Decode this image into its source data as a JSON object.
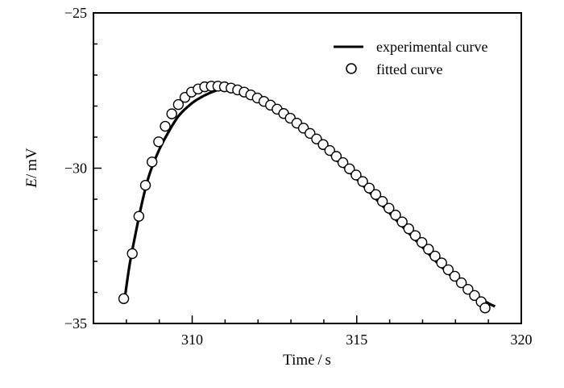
{
  "chart_data": {
    "type": "line",
    "xlabel_italic": "",
    "xlabel": "Time / s",
    "ylabel_italic": "E",
    "ylabel_rest": "/ mV",
    "xlim": [
      307,
      320
    ],
    "ylim": [
      -35,
      -25
    ],
    "xticks": [
      310,
      315,
      320
    ],
    "xtick_labels": [
      "310",
      "315",
      "320"
    ],
    "x_minor_step": 1,
    "yticks": [
      -25,
      -30,
      -35
    ],
    "ytick_labels": [
      "−25",
      "−30",
      "−35"
    ],
    "y_minor_step": 1,
    "grid": false,
    "legend_position": "top-right",
    "series": [
      {
        "name": "experimental curve",
        "style": "line",
        "color": "#000000",
        "x": [
          307.95,
          308.1,
          308.3,
          308.5,
          308.7,
          309.0,
          309.3,
          309.6,
          310.0,
          310.3,
          310.6,
          310.9,
          311.1,
          311.4,
          311.8,
          312.2,
          312.6,
          313.0,
          313.5,
          314.0,
          314.5,
          315.0,
          315.5,
          316.0,
          316.5,
          317.0,
          317.5,
          318.0,
          318.5,
          319.0,
          319.2
        ],
        "y": [
          -34.2,
          -33.1,
          -32.0,
          -31.0,
          -30.2,
          -29.4,
          -28.8,
          -28.3,
          -27.9,
          -27.7,
          -27.55,
          -27.45,
          -27.45,
          -27.5,
          -27.65,
          -27.85,
          -28.1,
          -28.4,
          -28.85,
          -29.35,
          -29.85,
          -30.35,
          -30.9,
          -31.45,
          -32.0,
          -32.55,
          -33.1,
          -33.6,
          -34.05,
          -34.35,
          -34.45
        ]
      },
      {
        "name": "fitted curve",
        "style": "markers",
        "marker": "open-circle",
        "color": "#000000",
        "x": [
          307.92,
          308.18,
          308.38,
          308.58,
          308.78,
          308.98,
          309.18,
          309.38,
          309.58,
          309.78,
          309.98,
          310.18,
          310.38,
          310.58,
          310.78,
          310.98,
          311.18,
          311.38,
          311.58,
          311.78,
          311.98,
          312.18,
          312.38,
          312.58,
          312.78,
          312.98,
          313.18,
          313.38,
          313.58,
          313.78,
          313.98,
          314.18,
          314.38,
          314.58,
          314.78,
          314.98,
          315.18,
          315.38,
          315.58,
          315.78,
          315.98,
          316.18,
          316.38,
          316.58,
          316.78,
          316.98,
          317.18,
          317.38,
          317.58,
          317.78,
          317.98,
          318.18,
          318.38,
          318.58,
          318.78,
          318.9
        ],
        "y": [
          -34.2,
          -32.75,
          -31.55,
          -30.55,
          -29.8,
          -29.15,
          -28.65,
          -28.25,
          -27.95,
          -27.72,
          -27.55,
          -27.45,
          -27.38,
          -27.36,
          -27.36,
          -27.38,
          -27.42,
          -27.48,
          -27.55,
          -27.64,
          -27.74,
          -27.85,
          -27.97,
          -28.1,
          -28.24,
          -28.39,
          -28.55,
          -28.71,
          -28.88,
          -29.06,
          -29.24,
          -29.43,
          -29.62,
          -29.82,
          -30.02,
          -30.22,
          -30.43,
          -30.64,
          -30.85,
          -31.07,
          -31.29,
          -31.51,
          -31.73,
          -31.95,
          -32.17,
          -32.39,
          -32.61,
          -32.83,
          -33.05,
          -33.27,
          -33.48,
          -33.69,
          -33.9,
          -34.1,
          -34.3,
          -34.5
        ]
      }
    ]
  }
}
